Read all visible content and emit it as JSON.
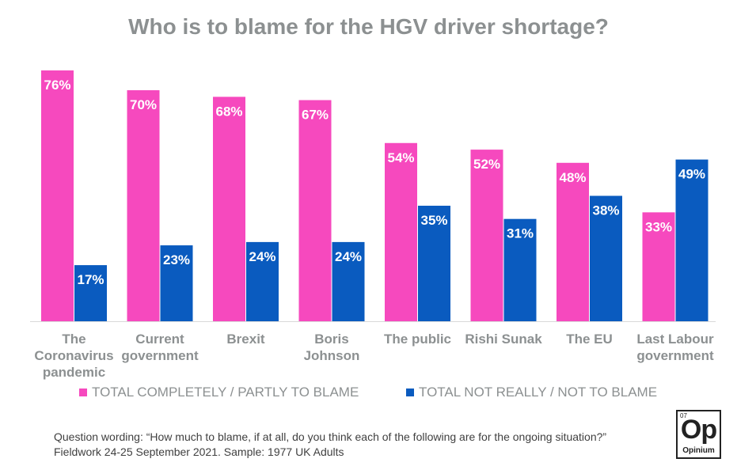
{
  "colors": {
    "pink": "#f649be",
    "blue": "#0a5bbf",
    "title": "#8c9091"
  },
  "chart_data": {
    "type": "bar",
    "title": "Who is to blame for the HGV driver shortage?",
    "categories": [
      [
        "The",
        "Coronavirus",
        "pandemic"
      ],
      [
        "Current",
        "government"
      ],
      [
        "Brexit"
      ],
      [
        "Boris",
        "Johnson"
      ],
      [
        "The public"
      ],
      [
        "Rishi Sunak"
      ],
      [
        "The EU"
      ],
      [
        "Last Labour",
        "government"
      ]
    ],
    "series": [
      {
        "name": "TOTAL COMPLETELY / PARTLY TO BLAME",
        "color": "#f649be",
        "values": [
          76,
          70,
          68,
          67,
          54,
          52,
          48,
          33
        ],
        "labels": [
          "76%",
          "70%",
          "68%",
          "67%",
          "54%",
          "52%",
          "48%",
          "33%"
        ]
      },
      {
        "name": "TOTAL NOT REALLY / NOT TO BLAME",
        "color": "#0a5bbf",
        "values": [
          17,
          23,
          24,
          24,
          35,
          31,
          38,
          49
        ],
        "labels": [
          "17%",
          "23%",
          "24%",
          "24%",
          "35%",
          "31%",
          "38%",
          "49%"
        ]
      }
    ],
    "ylim": [
      0,
      76
    ],
    "grid": false,
    "legend": "bottom"
  },
  "footnote": {
    "line1": "Question wording: “How much to blame, if at all, do you think each of the following are for the ongoing situation?”",
    "line2": "Fieldwork 24-25 September 2021. Sample: 1977 UK Adults"
  },
  "logo": {
    "number": "07",
    "symbol": "Op",
    "name": "Opinium"
  }
}
